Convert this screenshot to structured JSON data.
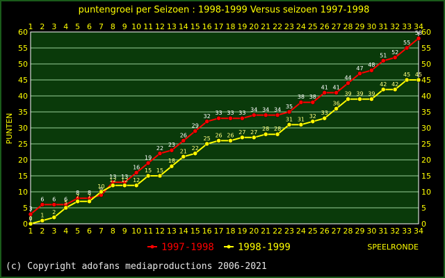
{
  "chart_data": {
    "type": "line",
    "title": "puntengroei per Seizoen : 1998-1999 Versus seizoen 1997-1998",
    "ylabel": "PUNTEN",
    "xlabel": "SPEELRONDE",
    "x": [
      1,
      2,
      3,
      4,
      5,
      6,
      7,
      8,
      9,
      10,
      11,
      12,
      13,
      14,
      15,
      16,
      17,
      18,
      19,
      20,
      21,
      22,
      23,
      24,
      25,
      26,
      27,
      28,
      29,
      30,
      31,
      32,
      33,
      34
    ],
    "ylim": [
      0,
      60
    ],
    "yticks": [
      0,
      5,
      10,
      15,
      20,
      25,
      30,
      35,
      40,
      45,
      50,
      55,
      60
    ],
    "grid": true,
    "legend_position": "bottom",
    "series": [
      {
        "name": "1997-1998",
        "color": "#ff0000",
        "values": [
          3,
          6,
          6,
          6,
          8,
          8,
          9,
          13,
          13,
          16,
          19,
          22,
          23,
          26,
          29,
          32,
          33,
          33,
          33,
          34,
          34,
          34,
          35,
          38,
          38,
          41,
          41,
          44,
          47,
          48,
          51,
          52,
          55,
          58
        ]
      },
      {
        "name": "1998-1999",
        "color": "#ffff00",
        "values": [
          0,
          1,
          2,
          5,
          7,
          7,
          10,
          12,
          12,
          12,
          15,
          15,
          18,
          21,
          22,
          25,
          26,
          26,
          27,
          27,
          28,
          28,
          31,
          31,
          32,
          33,
          36,
          39,
          39,
          39,
          42,
          42,
          45,
          45
        ]
      }
    ]
  },
  "footer": {
    "copyright": "(c) Copyright adofans mediaproductions 2006-2021"
  },
  "colors": {
    "plot_background": "#0a3a0a",
    "grid": "#9ad09a",
    "text": "#ffff00"
  }
}
